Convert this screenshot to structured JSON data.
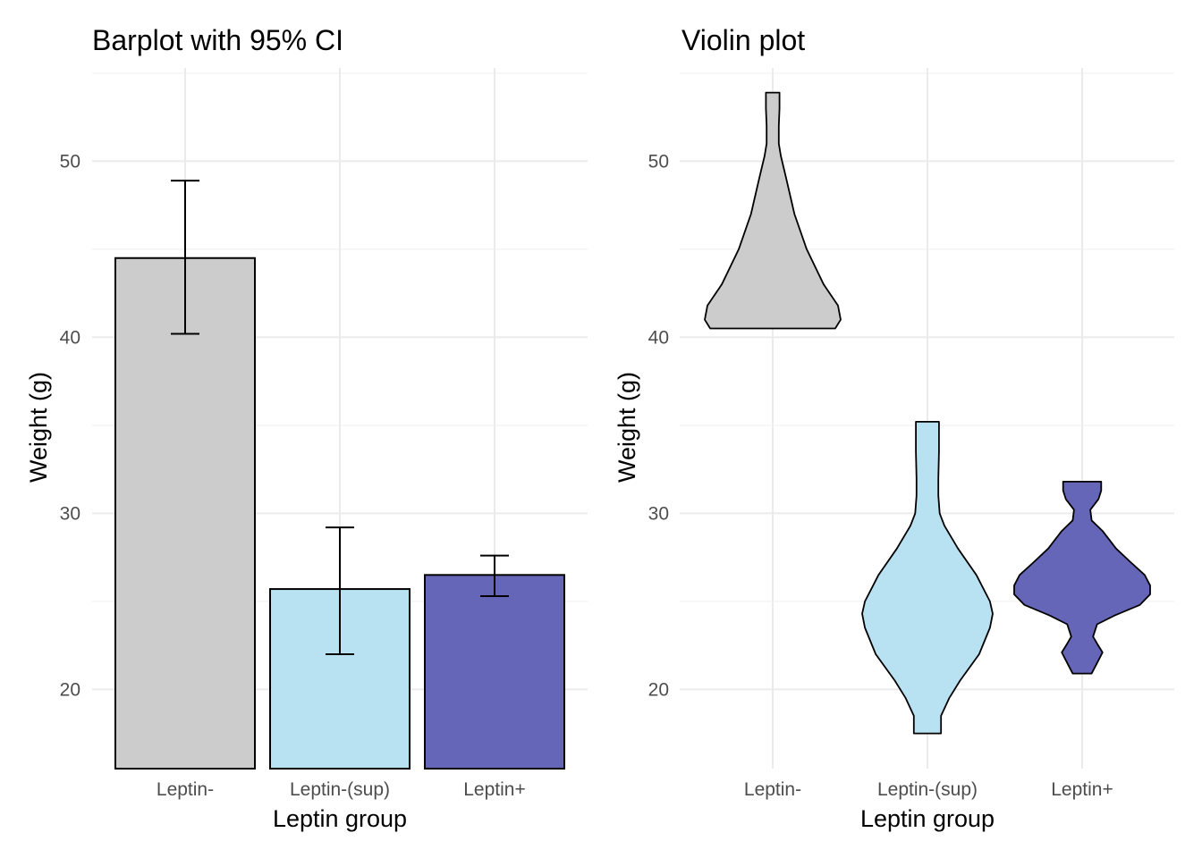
{
  "chart_data": [
    {
      "type": "bar",
      "title": "Barplot with 95% CI",
      "xlabel": "Leptin group",
      "ylabel": "Weight (g)",
      "categories": [
        "Leptin-",
        "Leptin-(sup)",
        "Leptin+"
      ],
      "values": [
        44.5,
        25.7,
        26.5
      ],
      "ci_low": [
        40.2,
        22.0,
        25.3
      ],
      "ci_high": [
        48.9,
        29.2,
        27.6
      ],
      "colors": [
        "#cccccc",
        "#b8e2f2",
        "#6666b8"
      ],
      "ylim": [
        15.5,
        55.3
      ],
      "yticks": [
        20,
        30,
        40,
        50
      ],
      "grid": true,
      "legend": "none"
    },
    {
      "type": "violin",
      "title": "Violin plot",
      "xlabel": "Leptin group",
      "ylabel": "Weight (g)",
      "categories": [
        "Leptin-",
        "Leptin-(sup)",
        "Leptin+"
      ],
      "colors": [
        "#cccccc",
        "#b8e2f2",
        "#6666b8"
      ],
      "ylim": [
        15.5,
        55.3
      ],
      "yticks": [
        20,
        30,
        40,
        50
      ],
      "grid": true,
      "legend": "none",
      "series": [
        {
          "category": "Leptin-",
          "y_range": [
            40.5,
            53.9
          ],
          "density_profile": [
            [
              40.5,
              0.92
            ],
            [
              41.0,
              1.0
            ],
            [
              41.8,
              0.96
            ],
            [
              43.0,
              0.75
            ],
            [
              45.0,
              0.5
            ],
            [
              47.0,
              0.32
            ],
            [
              49.0,
              0.2
            ],
            [
              50.3,
              0.12
            ],
            [
              51.0,
              0.09
            ],
            [
              52.0,
              0.09
            ],
            [
              53.0,
              0.1
            ],
            [
              53.9,
              0.1
            ]
          ]
        },
        {
          "category": "Leptin-(sup)",
          "y_range": [
            17.5,
            35.2
          ],
          "density_profile": [
            [
              17.5,
              0.2
            ],
            [
              18.5,
              0.2
            ],
            [
              19.5,
              0.32
            ],
            [
              20.5,
              0.48
            ],
            [
              22.0,
              0.76
            ],
            [
              23.5,
              0.92
            ],
            [
              24.3,
              0.96
            ],
            [
              25.0,
              0.92
            ],
            [
              26.5,
              0.72
            ],
            [
              28.0,
              0.45
            ],
            [
              29.3,
              0.25
            ],
            [
              30.0,
              0.18
            ],
            [
              31.0,
              0.16
            ],
            [
              32.0,
              0.16
            ],
            [
              33.5,
              0.17
            ],
            [
              35.2,
              0.17
            ]
          ]
        },
        {
          "category": "Leptin+",
          "y_range": [
            20.9,
            31.8
          ],
          "density_profile": [
            [
              20.9,
              0.14
            ],
            [
              21.5,
              0.22
            ],
            [
              22.1,
              0.3
            ],
            [
              22.6,
              0.22
            ],
            [
              23.0,
              0.16
            ],
            [
              23.7,
              0.22
            ],
            [
              24.2,
              0.48
            ],
            [
              24.8,
              0.85
            ],
            [
              25.4,
              1.0
            ],
            [
              25.9,
              1.0
            ],
            [
              26.5,
              0.92
            ],
            [
              27.2,
              0.72
            ],
            [
              28.0,
              0.5
            ],
            [
              29.0,
              0.3
            ],
            [
              29.6,
              0.14
            ],
            [
              30.2,
              0.12
            ],
            [
              30.8,
              0.24
            ],
            [
              31.3,
              0.28
            ],
            [
              31.8,
              0.28
            ]
          ]
        }
      ]
    }
  ]
}
